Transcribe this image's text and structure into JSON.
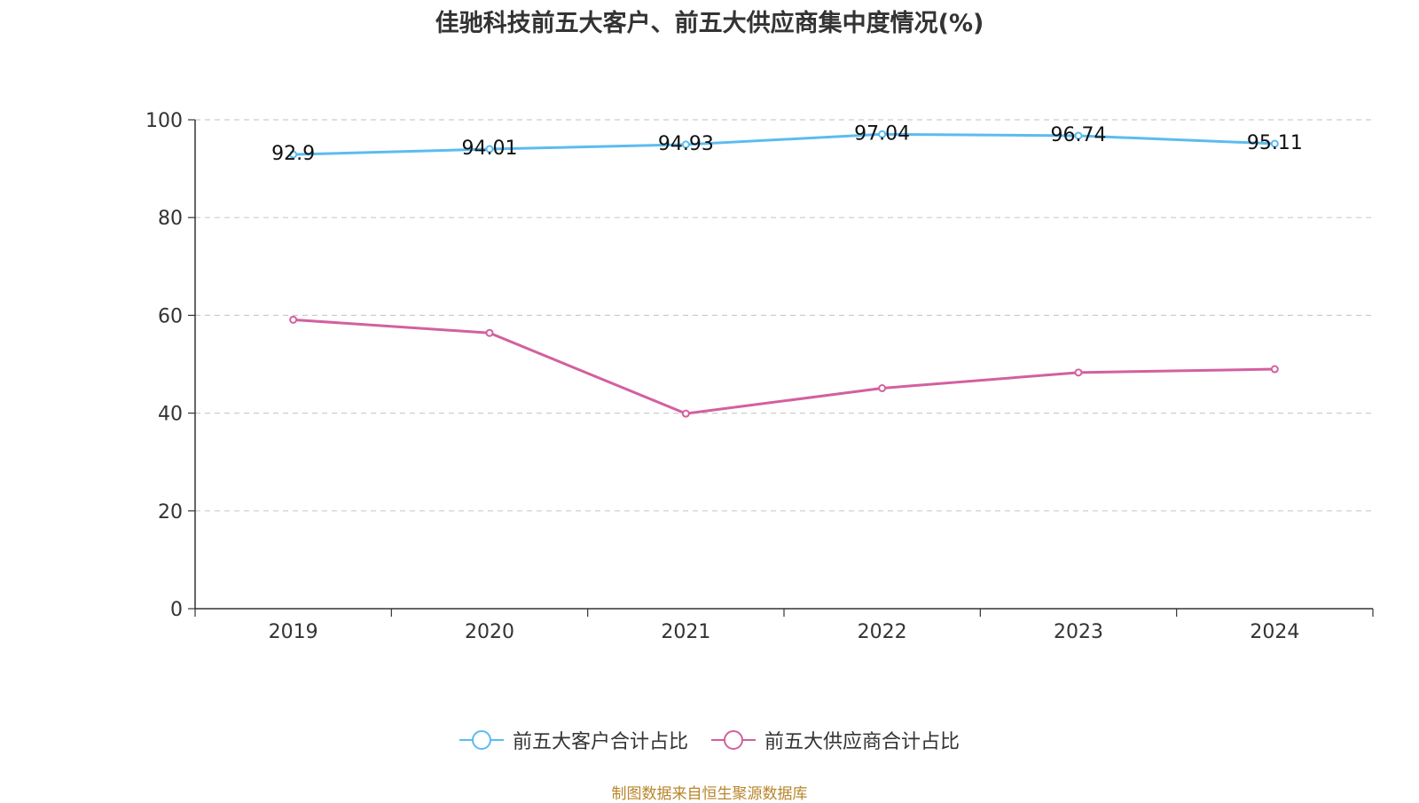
{
  "chart_data": {
    "type": "line",
    "title": "佳驰科技前五大客户、前五大供应商集中度情况(%)",
    "categories": [
      "2019",
      "2020",
      "2021",
      "2022",
      "2023",
      "2024"
    ],
    "ylim": [
      0,
      100
    ],
    "yticks": [
      0,
      20,
      40,
      60,
      80,
      100
    ],
    "grid": true,
    "legend_position": "bottom-center",
    "series": [
      {
        "name": "前五大客户合计占比",
        "color": "#5bbcf0",
        "values": [
          92.9,
          94.01,
          94.93,
          97.04,
          96.74,
          95.11
        ],
        "labels": [
          "92.9",
          "94.01",
          "94.93",
          "97.04",
          "96.74",
          "95.11"
        ],
        "show_labels": true
      },
      {
        "name": "前五大供应商合计占比",
        "color": "#d3609f",
        "values": [
          59.1,
          56.4,
          39.9,
          45.1,
          48.3,
          49.0
        ],
        "show_labels": false
      }
    ]
  },
  "source": "制图数据来自恒生聚源数据库"
}
